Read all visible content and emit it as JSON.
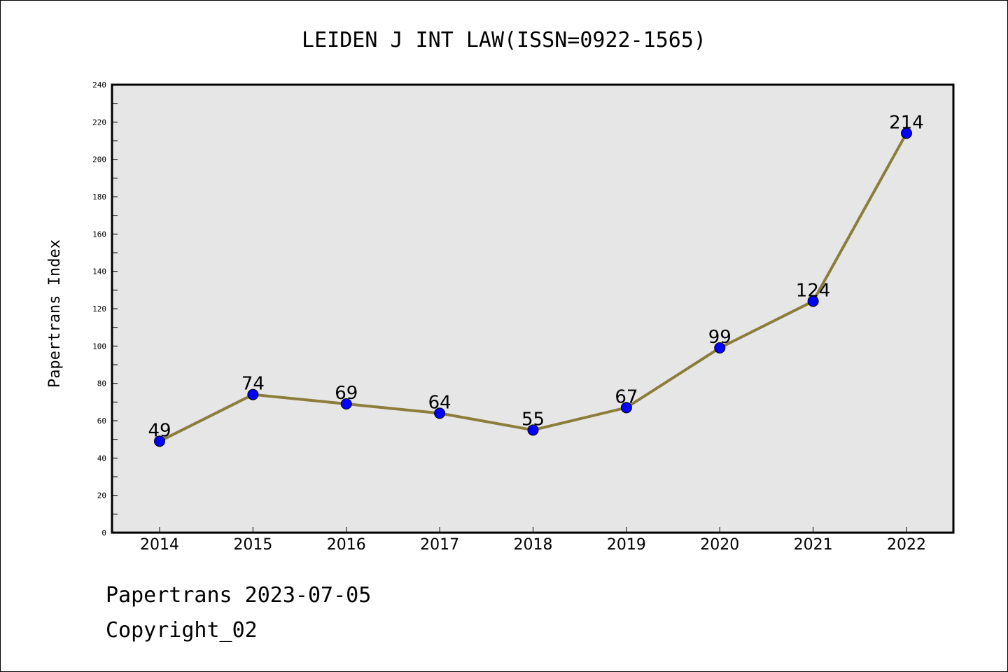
{
  "chart_data": {
    "type": "line",
    "title": "LEIDEN J INT LAW(ISSN=0922-1565)",
    "xlabel": "",
    "ylabel": "Papertrans Index",
    "categories": [
      "2014",
      "2015",
      "2016",
      "2017",
      "2018",
      "2019",
      "2020",
      "2021",
      "2022"
    ],
    "values": [
      49,
      74,
      69,
      64,
      55,
      67,
      99,
      124,
      214
    ],
    "ylim": [
      0,
      240
    ],
    "yticks": [
      0,
      20,
      40,
      60,
      80,
      100,
      120,
      140,
      160,
      180,
      200,
      220,
      240
    ],
    "colors": {
      "line": "#8b7d3a",
      "marker": "#0000ff",
      "plot_bg": "#e6e6e6"
    },
    "grid": false,
    "legend": "none"
  },
  "footer": {
    "line1": "Papertrans 2023-07-05",
    "line2": "Copyright_02"
  }
}
